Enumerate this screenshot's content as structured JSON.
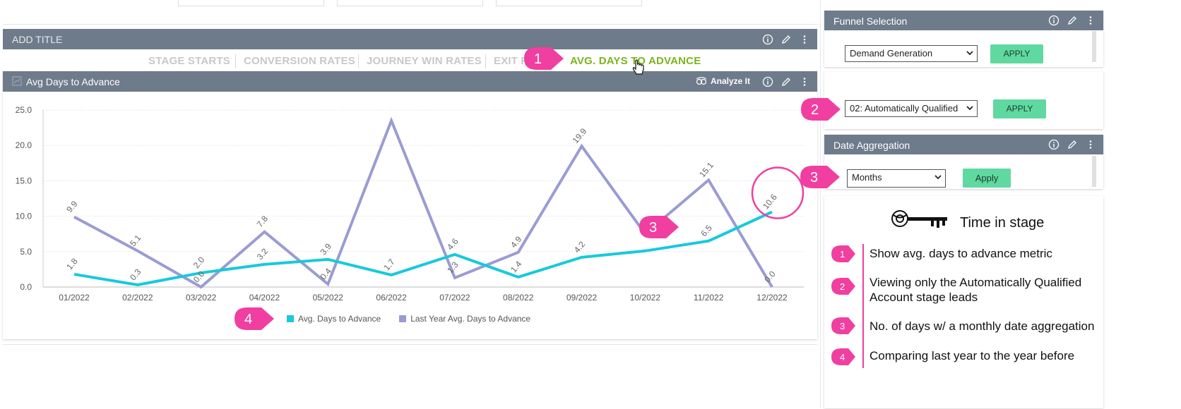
{
  "top_widget": {
    "title": "ADD TITLE",
    "tabs": [
      "STAGE STARTS",
      "CONVERSION RATES",
      "JOURNEY WIN RATES",
      "EXIT R",
      "AVG. DAYS TO ADVANCE"
    ],
    "active_tab_index": 4
  },
  "chart_panel": {
    "title": "Avg Days to Advance",
    "analyze_label": "Analyze It"
  },
  "chart_data": {
    "type": "line",
    "x": [
      "01/2022",
      "02/2022",
      "03/2022",
      "04/2022",
      "05/2022",
      "06/2022",
      "07/2022",
      "08/2022",
      "09/2022",
      "10/2022",
      "11/2022",
      "12/2022"
    ],
    "ylim": [
      0,
      25
    ],
    "yticks": [
      "0.0",
      "5.0",
      "10.0",
      "15.0",
      "20.0",
      "25.0"
    ],
    "series": [
      {
        "name": "Avg. Days to Advance",
        "color": "#18c9dc",
        "values": [
          1.8,
          0.3,
          2.0,
          3.2,
          3.9,
          1.7,
          4.6,
          1.4,
          4.2,
          5.1,
          6.5,
          10.6
        ],
        "labels": [
          "1.8",
          "0.3",
          "2.0",
          "3.2",
          "3.9",
          "1.7",
          "4.6",
          "1.4",
          "4.2",
          "",
          "6.5",
          "10.6"
        ]
      },
      {
        "name": "Last Year Avg. Days to Advance",
        "color": "#9b9bd4",
        "values": [
          9.9,
          5.1,
          0.0,
          7.8,
          0.4,
          23.5,
          1.3,
          4.9,
          19.9,
          7.5,
          15.1,
          0.0
        ],
        "labels": [
          "9.9",
          "5.1",
          "0.0",
          "7.8",
          "0.4",
          "",
          "1.3",
          "4.9",
          "19.9",
          "",
          "15.1",
          "0.0"
        ]
      }
    ],
    "grid": true,
    "legend_position": "bottom-center"
  },
  "funnel_selection": {
    "title": "Funnel Selection",
    "select_value": "Demand Generation",
    "apply_label": "APPLY"
  },
  "stage_filter": {
    "select_value": "02: Automatically Qualified",
    "apply_label": "APPLY"
  },
  "date_aggregation": {
    "title": "Date Aggregation",
    "select_value": "Months",
    "apply_label": "Apply"
  },
  "notes": {
    "title": "Time in stage",
    "items": [
      {
        "num": "1",
        "text_lines": [
          "Show avg. days to advance metric"
        ]
      },
      {
        "num": "2",
        "text_lines": [
          "Viewing only the Automatically Qualified",
          "Account stage leads"
        ]
      },
      {
        "num": "3",
        "text_lines": [
          "No. of days w/ a monthly date aggregation"
        ]
      },
      {
        "num": "4",
        "text_lines": [
          "Comparing last year to the year before"
        ]
      }
    ]
  },
  "callouts": [
    "1",
    "2",
    "3",
    "3",
    "4"
  ],
  "colors": {
    "header": "#6e7b8b",
    "accent_green": "#7ab51d",
    "callout_pink": "#f03fa0",
    "apply_green": "#5fd9a0"
  }
}
